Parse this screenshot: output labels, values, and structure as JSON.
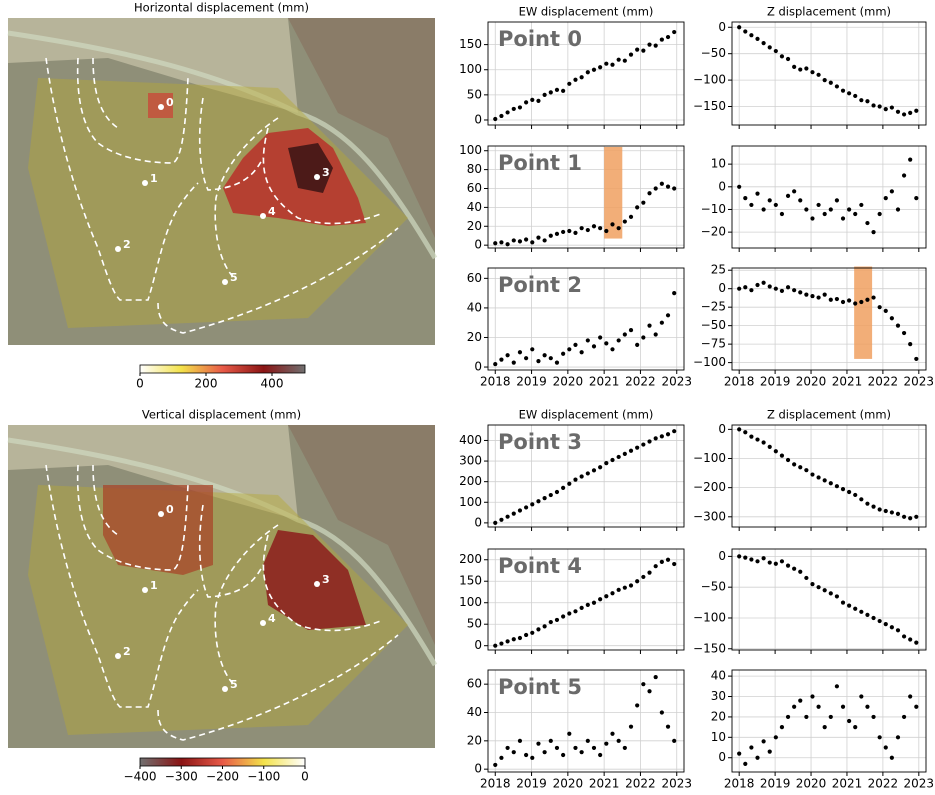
{
  "chart_data": [
    {
      "type": "map",
      "title": "Horizontal displacement (mm)",
      "points": [
        "0",
        "1",
        "2",
        "3",
        "4",
        "5"
      ],
      "clim": [
        0,
        500
      ],
      "cticks": [
        0,
        200,
        400
      ],
      "colormap": [
        "#ffffff",
        "#f3e24a",
        "#e85a48",
        "#8a1414",
        "#707070"
      ]
    },
    {
      "type": "map",
      "title": "Vertical displacement (mm)",
      "points": [
        "0",
        "1",
        "2",
        "3",
        "4",
        "5"
      ],
      "clim": [
        -400,
        0
      ],
      "cticks": [
        {
          "value": -400,
          "label": "−400"
        },
        {
          "value": -300,
          "label": "−300"
        },
        {
          "value": -200,
          "label": "−200"
        },
        {
          "value": -100,
          "label": "−100"
        },
        0
      ],
      "colormap": [
        "#707070",
        "#8a1414",
        "#e85a48",
        "#f3e24a",
        "#ffffff"
      ]
    },
    {
      "type": "scatter",
      "title": "EW displacement (mm)",
      "annotation": "Point 0",
      "color": "#000000",
      "grid": true,
      "xlim": [
        2017.8,
        2023.2
      ],
      "xticks": [
        2018,
        2019,
        2020,
        2021,
        2022,
        2023
      ],
      "ylim": [
        -10,
        195
      ],
      "yticks": [
        0,
        50,
        100,
        150
      ],
      "x": [
        2018.0,
        2018.17,
        2018.34,
        2018.51,
        2018.68,
        2018.85,
        2019.02,
        2019.19,
        2019.36,
        2019.53,
        2019.7,
        2019.87,
        2020.04,
        2020.21,
        2020.38,
        2020.55,
        2020.72,
        2020.89,
        2021.06,
        2021.23,
        2021.4,
        2021.57,
        2021.74,
        2021.91,
        2022.08,
        2022.25,
        2022.42,
        2022.59,
        2022.76,
        2022.93
      ],
      "values": [
        2,
        8,
        15,
        22,
        25,
        35,
        40,
        38,
        50,
        55,
        60,
        58,
        72,
        80,
        85,
        95,
        100,
        105,
        112,
        110,
        120,
        118,
        130,
        140,
        138,
        150,
        148,
        160,
        165,
        175
      ]
    },
    {
      "type": "scatter",
      "title": "Z displacement (mm)",
      "color": "#000000",
      "grid": true,
      "xlim": [
        2017.8,
        2023.2
      ],
      "xticks": [
        2018,
        2019,
        2020,
        2021,
        2022,
        2023
      ],
      "ylim": [
        -185,
        10
      ],
      "yticks": [
        0,
        {
          "value": -50,
          "label": "−50"
        },
        {
          "value": -100,
          "label": "−100"
        },
        {
          "value": -150,
          "label": "−150"
        }
      ],
      "x": [
        2018.0,
        2018.17,
        2018.34,
        2018.51,
        2018.68,
        2018.85,
        2019.02,
        2019.19,
        2019.36,
        2019.53,
        2019.7,
        2019.87,
        2020.04,
        2020.21,
        2020.38,
        2020.55,
        2020.72,
        2020.89,
        2021.06,
        2021.23,
        2021.4,
        2021.57,
        2021.74,
        2021.91,
        2022.08,
        2022.25,
        2022.42,
        2022.59,
        2022.76,
        2022.93
      ],
      "values": [
        0,
        -8,
        -15,
        -22,
        -30,
        -38,
        -45,
        -55,
        -60,
        -75,
        -80,
        -78,
        -85,
        -90,
        -100,
        -105,
        -112,
        -120,
        -125,
        -130,
        -138,
        -140,
        -148,
        -150,
        -155,
        -152,
        -160,
        -165,
        -162,
        -158
      ]
    },
    {
      "type": "scatter",
      "annotation": "Point 1",
      "color": "#000000",
      "grid": true,
      "xlim": [
        2017.8,
        2023.2
      ],
      "xticks": [
        2018,
        2019,
        2020,
        2021,
        2022,
        2023
      ],
      "ylim": [
        -3,
        105
      ],
      "yticks": [
        0,
        20,
        40,
        60,
        80,
        100
      ],
      "highlight": {
        "x": [
          2021.0,
          2021.5
        ],
        "y": [
          7,
          104
        ],
        "color": "#f0a060"
      },
      "x": [
        2018.0,
        2018.17,
        2018.34,
        2018.51,
        2018.68,
        2018.85,
        2019.02,
        2019.19,
        2019.36,
        2019.53,
        2019.7,
        2019.87,
        2020.04,
        2020.21,
        2020.38,
        2020.55,
        2020.72,
        2020.89,
        2021.06,
        2021.23,
        2021.4,
        2021.57,
        2021.74,
        2021.91,
        2022.08,
        2022.25,
        2022.42,
        2022.59,
        2022.76,
        2022.93
      ],
      "values": [
        2,
        3,
        1,
        5,
        4,
        6,
        3,
        8,
        5,
        10,
        12,
        14,
        15,
        13,
        18,
        16,
        20,
        18,
        15,
        22,
        18,
        25,
        30,
        40,
        45,
        55,
        60,
        65,
        62,
        60
      ]
    },
    {
      "type": "scatter",
      "color": "#000000",
      "grid": true,
      "xlim": [
        2017.8,
        2023.2
      ],
      "xticks": [
        2018,
        2019,
        2020,
        2021,
        2022,
        2023
      ],
      "ylim": [
        -27,
        18
      ],
      "yticks": [
        {
          "value": -20,
          "label": "−20"
        },
        {
          "value": -10,
          "label": "−10"
        },
        0,
        10
      ],
      "x": [
        2018.0,
        2018.17,
        2018.34,
        2018.51,
        2018.68,
        2018.85,
        2019.02,
        2019.19,
        2019.36,
        2019.53,
        2019.7,
        2019.87,
        2020.04,
        2020.21,
        2020.38,
        2020.55,
        2020.72,
        2020.89,
        2021.06,
        2021.23,
        2021.4,
        2021.57,
        2021.74,
        2021.91,
        2022.08,
        2022.25,
        2022.42,
        2022.59,
        2022.76,
        2022.93
      ],
      "values": [
        0,
        -5,
        -8,
        -3,
        -10,
        -6,
        -8,
        -12,
        -4,
        -2,
        -6,
        -10,
        -14,
        -8,
        -12,
        -10,
        -6,
        -14,
        -10,
        -12,
        -8,
        -16,
        -20,
        -12,
        -5,
        -2,
        -10,
        5,
        12,
        -5
      ]
    },
    {
      "type": "scatter",
      "annotation": "Point 2",
      "color": "#000000",
      "grid": true,
      "xlim": [
        2017.8,
        2023.2
      ],
      "xticks": [
        2018,
        2019,
        2020,
        2021,
        2022,
        2023
      ],
      "ylim": [
        -2,
        67
      ],
      "yticks": [
        0,
        20,
        40,
        60
      ],
      "x": [
        2018.0,
        2018.17,
        2018.34,
        2018.51,
        2018.68,
        2018.85,
        2019.02,
        2019.19,
        2019.36,
        2019.53,
        2019.7,
        2019.87,
        2020.04,
        2020.21,
        2020.38,
        2020.55,
        2020.72,
        2020.89,
        2021.06,
        2021.23,
        2021.4,
        2021.57,
        2021.74,
        2021.91,
        2022.08,
        2022.25,
        2022.42,
        2022.59,
        2022.76,
        2022.93
      ],
      "values": [
        2,
        5,
        8,
        3,
        10,
        6,
        12,
        4,
        8,
        6,
        3,
        9,
        12,
        15,
        10,
        18,
        14,
        20,
        16,
        12,
        18,
        22,
        25,
        15,
        20,
        28,
        22,
        30,
        35,
        50
      ]
    },
    {
      "type": "scatter",
      "color": "#000000",
      "grid": true,
      "xlim": [
        2017.8,
        2023.2
      ],
      "xticks": [
        2018,
        2019,
        2020,
        2021,
        2022,
        2023
      ],
      "ylim": [
        -110,
        28
      ],
      "yticks": [
        25,
        0,
        {
          "value": -25,
          "label": "−25"
        },
        {
          "value": -50,
          "label": "−50"
        },
        {
          "value": -75,
          "label": "−75"
        },
        {
          "value": -100,
          "label": "−100"
        }
      ],
      "highlight": {
        "x": [
          2021.2,
          2021.7
        ],
        "y": [
          -95,
          30
        ],
        "color": "#f0a060"
      },
      "x": [
        2018.0,
        2018.17,
        2018.34,
        2018.51,
        2018.68,
        2018.85,
        2019.02,
        2019.19,
        2019.36,
        2019.53,
        2019.7,
        2019.87,
        2020.04,
        2020.21,
        2020.38,
        2020.55,
        2020.72,
        2020.89,
        2021.06,
        2021.23,
        2021.4,
        2021.57,
        2021.74,
        2021.91,
        2022.08,
        2022.25,
        2022.42,
        2022.59,
        2022.76,
        2022.93
      ],
      "values": [
        0,
        2,
        -2,
        5,
        8,
        3,
        0,
        -3,
        2,
        -2,
        -5,
        -8,
        -10,
        -12,
        -8,
        -15,
        -14,
        -18,
        -16,
        -20,
        -18,
        -15,
        -12,
        -25,
        -30,
        -40,
        -50,
        -60,
        -75,
        -95
      ]
    },
    {
      "type": "scatter",
      "title": "EW displacement (mm)",
      "annotation": "Point 3",
      "color": "#000000",
      "grid": true,
      "xlim": [
        2017.8,
        2023.2
      ],
      "xticks": [
        2018,
        2019,
        2020,
        2021,
        2022,
        2023
      ],
      "ylim": [
        -20,
        475
      ],
      "yticks": [
        0,
        100,
        200,
        300,
        400
      ],
      "x": [
        2018.0,
        2018.17,
        2018.34,
        2018.51,
        2018.68,
        2018.85,
        2019.02,
        2019.19,
        2019.36,
        2019.53,
        2019.7,
        2019.87,
        2020.04,
        2020.21,
        2020.38,
        2020.55,
        2020.72,
        2020.89,
        2021.06,
        2021.23,
        2021.4,
        2021.57,
        2021.74,
        2021.91,
        2022.08,
        2022.25,
        2022.42,
        2022.59,
        2022.76,
        2022.93
      ],
      "values": [
        0,
        15,
        30,
        45,
        60,
        75,
        90,
        105,
        120,
        135,
        150,
        170,
        190,
        210,
        225,
        240,
        255,
        270,
        290,
        305,
        320,
        335,
        350,
        365,
        380,
        395,
        410,
        420,
        430,
        445
      ]
    },
    {
      "type": "scatter",
      "title": "Z displacement (mm)",
      "color": "#000000",
      "grid": true,
      "xlim": [
        2017.8,
        2023.2
      ],
      "xticks": [
        2018,
        2019,
        2020,
        2021,
        2022,
        2023
      ],
      "ylim": [
        -335,
        15
      ],
      "yticks": [
        0,
        {
          "value": -100,
          "label": "−100"
        },
        {
          "value": -200,
          "label": "−200"
        },
        {
          "value": -300,
          "label": "−300"
        }
      ],
      "x": [
        2018.0,
        2018.17,
        2018.34,
        2018.51,
        2018.68,
        2018.85,
        2019.02,
        2019.19,
        2019.36,
        2019.53,
        2019.7,
        2019.87,
        2020.04,
        2020.21,
        2020.38,
        2020.55,
        2020.72,
        2020.89,
        2021.06,
        2021.23,
        2021.4,
        2021.57,
        2021.74,
        2021.91,
        2022.08,
        2022.25,
        2022.42,
        2022.59,
        2022.76,
        2022.93
      ],
      "values": [
        0,
        -10,
        -25,
        -35,
        -45,
        -60,
        -75,
        -90,
        -105,
        -120,
        -130,
        -140,
        -155,
        -165,
        -175,
        -185,
        -195,
        -205,
        -215,
        -225,
        -240,
        -255,
        -265,
        -275,
        -280,
        -285,
        -290,
        -300,
        -305,
        -300
      ]
    },
    {
      "type": "scatter",
      "annotation": "Point 4",
      "color": "#000000",
      "grid": true,
      "xlim": [
        2017.8,
        2023.2
      ],
      "xticks": [
        2018,
        2019,
        2020,
        2021,
        2022,
        2023
      ],
      "ylim": [
        -10,
        225
      ],
      "yticks": [
        0,
        50,
        100,
        150,
        200
      ],
      "x": [
        2018.0,
        2018.17,
        2018.34,
        2018.51,
        2018.68,
        2018.85,
        2019.02,
        2019.19,
        2019.36,
        2019.53,
        2019.7,
        2019.87,
        2020.04,
        2020.21,
        2020.38,
        2020.55,
        2020.72,
        2020.89,
        2021.06,
        2021.23,
        2021.4,
        2021.57,
        2021.74,
        2021.91,
        2022.08,
        2022.25,
        2022.42,
        2022.59,
        2022.76,
        2022.93
      ],
      "values": [
        0,
        5,
        10,
        15,
        18,
        25,
        30,
        38,
        45,
        55,
        60,
        68,
        75,
        80,
        88,
        95,
        100,
        108,
        115,
        122,
        130,
        135,
        140,
        150,
        160,
        170,
        185,
        195,
        200,
        190
      ]
    },
    {
      "type": "scatter",
      "color": "#000000",
      "grid": true,
      "xlim": [
        2017.8,
        2023.2
      ],
      "xticks": [
        2018,
        2019,
        2020,
        2021,
        2022,
        2023
      ],
      "ylim": [
        -152,
        12
      ],
      "yticks": [
        0,
        {
          "value": -50,
          "label": "−50"
        },
        {
          "value": -100,
          "label": "−100"
        },
        {
          "value": -150,
          "label": "−150"
        }
      ],
      "x": [
        2018.0,
        2018.17,
        2018.34,
        2018.51,
        2018.68,
        2018.85,
        2019.02,
        2019.19,
        2019.36,
        2019.53,
        2019.7,
        2019.87,
        2020.04,
        2020.21,
        2020.38,
        2020.55,
        2020.72,
        2020.89,
        2021.06,
        2021.23,
        2021.4,
        2021.57,
        2021.74,
        2021.91,
        2022.08,
        2022.25,
        2022.42,
        2022.59,
        2022.76,
        2022.93
      ],
      "values": [
        0,
        -2,
        -5,
        -8,
        -3,
        -10,
        -12,
        -8,
        -15,
        -20,
        -25,
        -35,
        -45,
        -50,
        -55,
        -60,
        -65,
        -75,
        -80,
        -85,
        -90,
        -95,
        -100,
        -105,
        -110,
        -115,
        -120,
        -130,
        -135,
        -140
      ]
    },
    {
      "type": "scatter",
      "annotation": "Point 5",
      "color": "#000000",
      "grid": true,
      "xlim": [
        2017.8,
        2023.2
      ],
      "xticks": [
        2018,
        2019,
        2020,
        2021,
        2022,
        2023
      ],
      "ylim": [
        -2,
        70
      ],
      "yticks": [
        0,
        20,
        40,
        60
      ],
      "x": [
        2018.0,
        2018.17,
        2018.34,
        2018.51,
        2018.68,
        2018.85,
        2019.02,
        2019.19,
        2019.36,
        2019.53,
        2019.7,
        2019.87,
        2020.04,
        2020.21,
        2020.38,
        2020.55,
        2020.72,
        2020.89,
        2021.06,
        2021.23,
        2021.4,
        2021.57,
        2021.74,
        2021.91,
        2022.08,
        2022.25,
        2022.42,
        2022.59,
        2022.76,
        2022.93
      ],
      "values": [
        3,
        8,
        15,
        12,
        20,
        10,
        8,
        18,
        12,
        20,
        15,
        10,
        25,
        15,
        12,
        20,
        15,
        10,
        18,
        25,
        20,
        15,
        30,
        45,
        60,
        55,
        65,
        40,
        30,
        20
      ]
    },
    {
      "type": "scatter",
      "color": "#000000",
      "grid": true,
      "xlim": [
        2017.8,
        2023.2
      ],
      "xticks": [
        2018,
        2019,
        2020,
        2021,
        2022,
        2023
      ],
      "ylim": [
        -7,
        43
      ],
      "yticks": [
        0,
        10,
        20,
        30,
        40
      ],
      "x": [
        2018.0,
        2018.17,
        2018.34,
        2018.51,
        2018.68,
        2018.85,
        2019.02,
        2019.19,
        2019.36,
        2019.53,
        2019.7,
        2019.87,
        2020.04,
        2020.21,
        2020.38,
        2020.55,
        2020.72,
        2020.89,
        2021.06,
        2021.23,
        2021.4,
        2021.57,
        2021.74,
        2021.91,
        2022.08,
        2022.25,
        2022.42,
        2022.59,
        2022.76,
        2022.93
      ],
      "values": [
        2,
        -3,
        5,
        0,
        8,
        3,
        10,
        15,
        20,
        25,
        28,
        20,
        30,
        25,
        15,
        20,
        35,
        25,
        18,
        15,
        30,
        25,
        20,
        10,
        5,
        0,
        10,
        20,
        30,
        25
      ]
    }
  ]
}
